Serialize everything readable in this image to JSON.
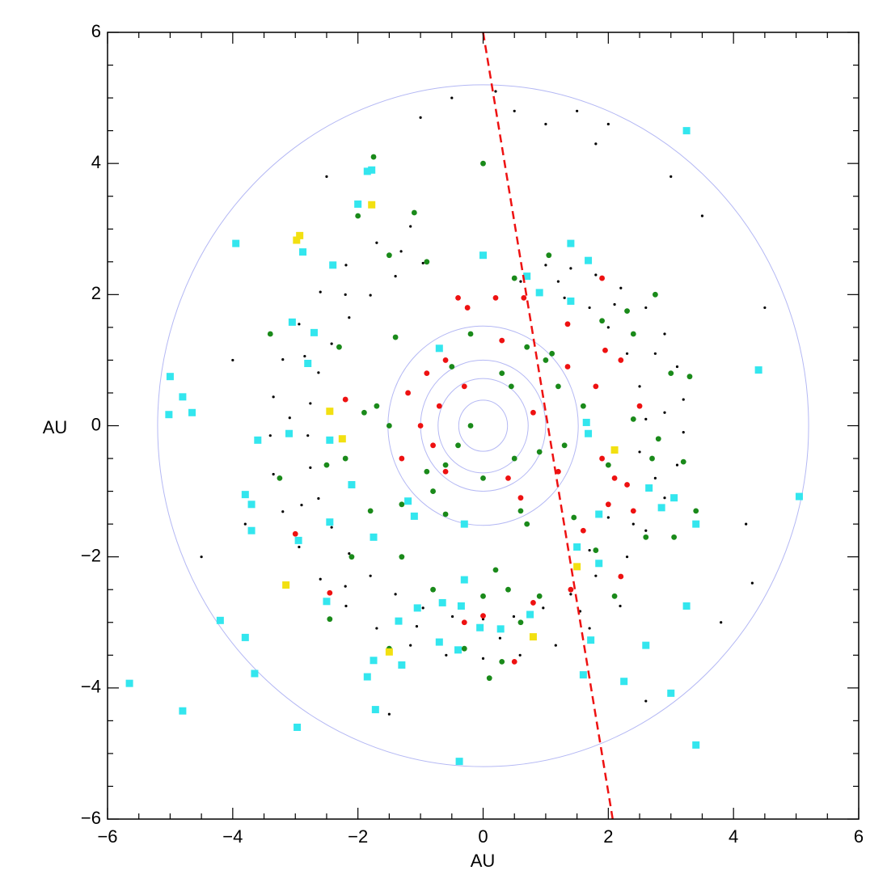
{
  "chart_data": {
    "type": "scatter",
    "xlabel": "AU",
    "ylabel": "AU",
    "xlim": [
      -6,
      6
    ],
    "ylim": [
      -6,
      6
    ],
    "xticks": [
      {
        "value": -6,
        "label": "−6"
      },
      {
        "value": -4,
        "label": "−4"
      },
      {
        "value": -2,
        "label": "−2"
      },
      0,
      2,
      4,
      6
    ],
    "yticks": [
      {
        "value": -6,
        "label": "−6"
      },
      {
        "value": -4,
        "label": "−4"
      },
      {
        "value": -2,
        "label": "−2"
      },
      0,
      2,
      4,
      6
    ],
    "xminorticks": [
      -5.5,
      -5,
      -4.5,
      -3.5,
      -3,
      -2.5,
      -1.5,
      -1,
      -0.5,
      0.5,
      1,
      1.5,
      2.5,
      3,
      3.5,
      4.5,
      5,
      5.5
    ],
    "yminorticks": [
      -5.5,
      -5,
      -4.5,
      -3.5,
      -3,
      -2.5,
      -1.5,
      -1,
      -0.5,
      0.5,
      1,
      1.5,
      2.5,
      3,
      3.5,
      4.5,
      5,
      5.5
    ],
    "reference_circles": {
      "color": "#b4b8f4",
      "radii": [
        0.39,
        0.72,
        1.0,
        1.52,
        5.2
      ]
    },
    "reference_line": {
      "color": "#ee1111",
      "x": [
        0,
        2.07
      ],
      "values": [
        6,
        -6
      ]
    },
    "series": [
      {
        "color": "#000000",
        "marker": "dot",
        "x": [
          -0.96,
          -1.16,
          -1.4,
          -1.7,
          -1.8,
          -2.19,
          -2.14,
          -2.6,
          -2.42,
          -2.94,
          -2.63,
          -3.2,
          -2.76,
          -3.35,
          -2.8,
          -3.4,
          -2.76,
          -3.35,
          -2.63,
          -3.2,
          -2.42,
          -2.94,
          -2.14,
          -2.6,
          -1.8,
          -2.19,
          -1.4,
          -1.7,
          -0.96,
          -1.16,
          -0.49,
          -0.59,
          0,
          0,
          0.49,
          0.59,
          0.96,
          1.16,
          1.4,
          1.7,
          1.8,
          2.19,
          -1.31,
          -2.2,
          -2.85,
          -3.09,
          -2.9,
          -2.2,
          -1.06,
          0.27,
          1.55,
          0.6,
          1.0,
          1.4,
          1.8,
          2.2,
          2.6,
          2.9,
          3.1,
          3.2,
          3.2,
          3.1,
          2.9,
          2.6,
          2.3,
          0.9,
          1.3,
          1.7,
          2.0,
          2.3,
          2.5,
          2.6,
          2.5,
          2.3,
          2.0,
          1.7,
          1.2,
          2.1,
          2.75,
          2.9,
          2.75,
          2.4,
          -0.5,
          0.5,
          1.0,
          1.5,
          2.0,
          -1.0,
          0.2,
          1.8,
          -2.5,
          3.5,
          3.0,
          -4.0,
          -4.5,
          4.2,
          3.8,
          4.3,
          2.6,
          -3.8,
          4.5,
          -1.5
        ],
        "values": [
          2.48,
          3.04,
          2.28,
          2.79,
          1.99,
          2.45,
          1.65,
          2.04,
          1.25,
          1.55,
          0.81,
          1.01,
          0.34,
          0.44,
          -0.15,
          -0.15,
          -0.64,
          -0.74,
          -1.11,
          -1.31,
          -1.55,
          -1.85,
          -1.95,
          -2.34,
          -2.29,
          -2.75,
          -2.57,
          -3.09,
          -2.78,
          -3.35,
          -2.91,
          -3.5,
          -2.95,
          -3.55,
          -2.91,
          -3.5,
          -2.78,
          -3.35,
          -2.57,
          -3.09,
          -2.29,
          -2.75,
          2.66,
          2.0,
          1.06,
          0.12,
          -1.21,
          -2.45,
          -3.06,
          -3.24,
          -2.83,
          2.2,
          2.45,
          2.4,
          2.3,
          2.1,
          1.8,
          1.4,
          0.9,
          0.4,
          -0.1,
          -0.6,
          -1.1,
          -1.6,
          -2.0,
          2.0,
          1.95,
          1.8,
          1.5,
          1.1,
          0.6,
          0.1,
          -0.4,
          -0.9,
          -1.4,
          -1.9,
          2.2,
          1.85,
          1.1,
          0.2,
          -0.8,
          -1.5,
          5.0,
          4.8,
          4.6,
          4.8,
          4.6,
          4.7,
          5.1,
          4.3,
          3.8,
          3.2,
          3.8,
          1.0,
          -2.0,
          -1.5,
          -3.0,
          -2.4,
          -4.2,
          -1.5,
          1.8,
          -4.4
        ]
      },
      {
        "color": "#1a8a1a",
        "marker": "circle",
        "x": [
          -1.75,
          0.0,
          -1.1,
          -2.0,
          -0.9,
          -1.5,
          0.5,
          1.05,
          2.75,
          -3.4,
          -2.3,
          2.4,
          3.0,
          3.3,
          -1.4,
          -0.2,
          0.7,
          1.1,
          -1.7,
          -1.5,
          -0.2,
          1.2,
          0.9,
          -0.6,
          0.0,
          1.3,
          -1.3,
          -0.6,
          0.6,
          2.0,
          2.8,
          3.2,
          3.4,
          3.05,
          2.6,
          1.8,
          2.1,
          -2.2,
          -2.5,
          -3.25,
          -1.8,
          -2.1,
          -1.3,
          -0.8,
          0.2,
          0.4,
          0.9,
          -2.45,
          -1.5,
          -0.3,
          0.3,
          0.1,
          0.6,
          -0.5,
          0.3,
          -0.9,
          1.6,
          2.4,
          2.7,
          1.9,
          2.3,
          -0.8,
          0.5,
          -1.9,
          1.0,
          0.45,
          -0.4,
          0.7,
          1.45,
          0.0
        ],
        "values": [
          4.1,
          4.0,
          3.25,
          3.2,
          2.5,
          2.6,
          2.25,
          2.6,
          2.0,
          1.4,
          1.2,
          1.4,
          0.8,
          0.75,
          1.35,
          1.4,
          1.2,
          1.1,
          0.3,
          0.0,
          0.0,
          0.6,
          -0.4,
          -0.6,
          -0.8,
          -0.3,
          -1.2,
          -1.35,
          -1.3,
          -0.6,
          -0.2,
          -0.55,
          -1.3,
          -1.7,
          -1.7,
          -1.9,
          -2.6,
          -0.5,
          -0.6,
          -0.8,
          -1.3,
          -2.0,
          -2.0,
          -2.5,
          -2.2,
          -2.5,
          -2.6,
          -2.95,
          -3.4,
          -3.4,
          -3.6,
          -3.85,
          -3.0,
          0.9,
          0.8,
          -0.7,
          0.3,
          0.1,
          -0.5,
          1.6,
          1.75,
          -1.0,
          -0.5,
          0.2,
          1.0,
          0.6,
          -0.3,
          -1.5,
          -1.4,
          -2.6
        ]
      },
      {
        "color": "#ee1111",
        "marker": "circle",
        "x": [
          1.9,
          0.65,
          1.35,
          1.95,
          2.2,
          -0.4,
          0.2,
          -0.6,
          -0.9,
          -0.3,
          -1.2,
          -0.7,
          -1.0,
          -0.8,
          -0.6,
          -1.3,
          0.4,
          0.6,
          1.2,
          1.9,
          2.1,
          2.0,
          2.4,
          1.6,
          1.4,
          0.8,
          -0.3,
          0.5,
          2.2,
          -2.45,
          -3.0,
          -2.2,
          0.3,
          0.8,
          1.35,
          2.5,
          -0.25,
          2.3,
          1.8,
          0.0
        ],
        "values": [
          2.25,
          1.95,
          1.55,
          1.15,
          1.0,
          1.95,
          1.95,
          1.0,
          0.8,
          0.6,
          0.5,
          0.3,
          0.0,
          -0.3,
          -0.7,
          -0.5,
          -0.8,
          -1.1,
          -0.7,
          -0.5,
          -0.8,
          -1.2,
          -1.3,
          -1.6,
          -2.5,
          -2.7,
          -3.0,
          -3.6,
          -2.3,
          -2.55,
          -1.65,
          0.4,
          1.3,
          0.2,
          0.9,
          0.3,
          1.8,
          -0.9,
          0.6,
          -2.9
        ]
      },
      {
        "color": "#33e6ee",
        "marker": "square",
        "x": [
          3.25,
          -1.85,
          -1.78,
          -2.0,
          -3.95,
          -2.88,
          -2.4,
          0.0,
          1.4,
          1.68,
          0.7,
          1.4,
          0.9,
          -3.05,
          -2.7,
          -0.7,
          -2.8,
          4.4,
          -5.0,
          -4.8,
          -4.65,
          -5.02,
          1.65,
          1.68,
          -3.1,
          -3.6,
          -2.45,
          -3.8,
          -3.7,
          -2.1,
          -1.2,
          -1.1,
          2.65,
          3.05,
          2.85,
          1.85,
          3.4,
          5.05,
          -0.3,
          -3.7,
          -2.95,
          -2.45,
          -1.75,
          -2.5,
          -1.05,
          -0.35,
          -0.65,
          -0.3,
          1.5,
          1.85,
          3.25,
          0.75,
          -1.35,
          -4.2,
          -3.8,
          -0.7,
          -0.05,
          0.28,
          -0.4,
          1.72,
          2.6,
          -1.75,
          -1.3,
          -1.85,
          1.6,
          -3.65,
          -5.65,
          2.25,
          3.0,
          -4.8,
          -1.72,
          -2.97,
          3.4,
          -0.38
        ],
        "values": [
          4.5,
          3.88,
          3.9,
          3.38,
          2.78,
          2.65,
          2.45,
          2.6,
          2.78,
          2.52,
          2.28,
          1.9,
          2.03,
          1.58,
          1.42,
          1.18,
          0.95,
          0.85,
          0.75,
          0.44,
          0.2,
          0.17,
          0.05,
          -0.12,
          -0.12,
          -0.22,
          -0.22,
          -1.05,
          -1.2,
          -0.9,
          -1.15,
          -1.38,
          -0.95,
          -1.1,
          -1.25,
          -1.35,
          -1.5,
          -1.08,
          -1.5,
          -1.6,
          -1.75,
          -1.47,
          -1.7,
          -2.68,
          -2.78,
          -2.75,
          -2.7,
          -2.35,
          -1.85,
          -2.1,
          -2.75,
          -2.88,
          -2.98,
          -2.97,
          -3.23,
          -3.3,
          -3.08,
          -3.1,
          -3.42,
          -3.27,
          -3.35,
          -3.58,
          -3.65,
          -3.83,
          -3.8,
          -3.78,
          -3.93,
          -3.9,
          -4.08,
          -4.35,
          -4.33,
          -4.6,
          -4.87,
          -5.12
        ]
      },
      {
        "color": "#f2e011",
        "marker": "square",
        "x": [
          -1.78,
          -2.93,
          -2.98,
          -2.45,
          -2.25,
          2.1,
          1.5,
          -3.15,
          0.8,
          -1.5
        ],
        "values": [
          3.37,
          2.9,
          2.83,
          0.22,
          -0.2,
          -0.37,
          -2.15,
          -2.43,
          -3.22,
          -3.45
        ]
      }
    ]
  }
}
